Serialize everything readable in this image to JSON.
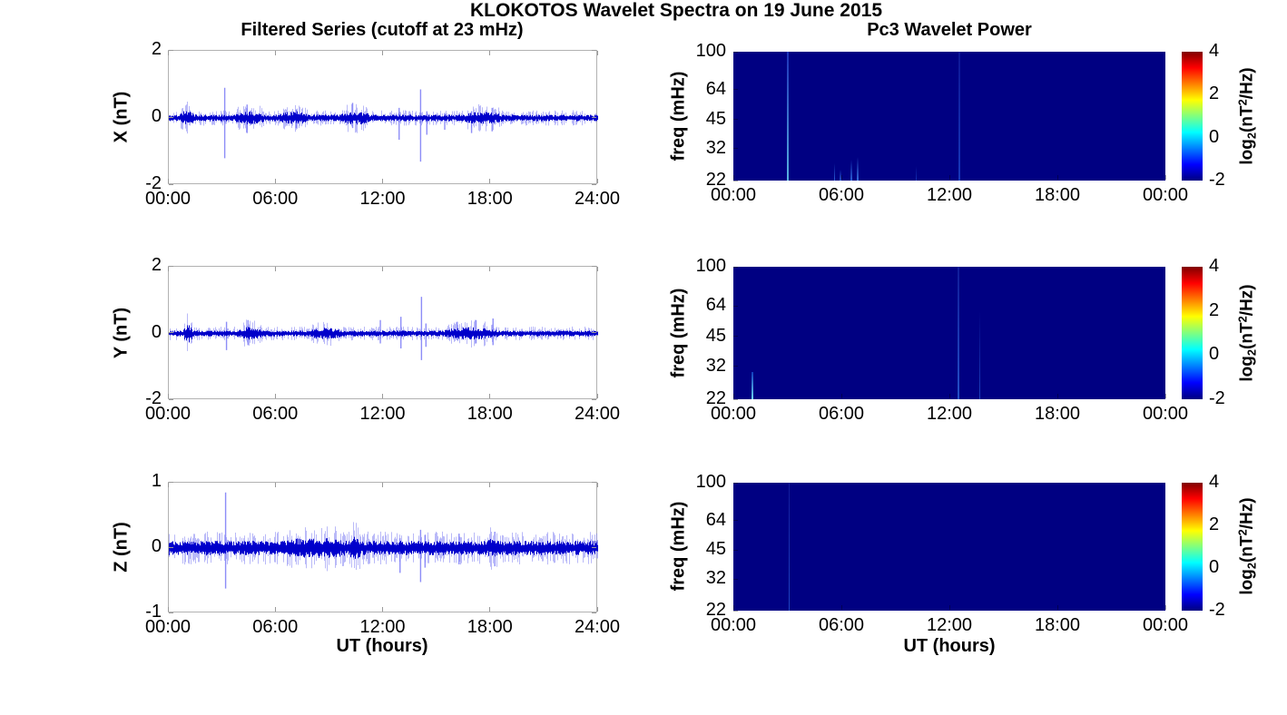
{
  "figure": {
    "title": "KLOKOTOS Wavelet Spectra on 19 June 2015",
    "left_title": "Filtered Series (cutoff at 23 mHz)",
    "right_title": "Pc3 Wavelet Power",
    "xlabel": "UT (hours)",
    "background": "#ffffff",
    "series_color": "#0000cc",
    "spike_color": "rgba(112,112,245,0.8)",
    "outlier_color": "rgba(115,115,242,0.5)"
  },
  "colorbar": {
    "ticks": [
      "4",
      "2",
      "0",
      "-2"
    ],
    "tick_values": [
      4,
      2,
      0,
      -2
    ],
    "range": [
      -2,
      4
    ],
    "label_pre": "log",
    "label_sub": "2",
    "label_mid": "(nT",
    "label_sup": "2",
    "label_post": "/Hz)",
    "colormap": "jet",
    "gradient": [
      "#800000",
      "#ff0000",
      "#ffff00",
      "#00ffff",
      "#0000ff",
      "#000080"
    ]
  },
  "chart_data": [
    {
      "id": "ts-x",
      "type": "line",
      "ylabel": "X (nT)",
      "ylim": [
        -2,
        2
      ],
      "yticks": [
        2,
        0,
        -2
      ],
      "ytick_labels": [
        "2",
        "0",
        "-2"
      ],
      "xlim_hours": [
        0,
        24
      ],
      "xticks_hours": [
        0,
        6,
        12,
        18,
        24
      ],
      "xtick_labels": [
        "00:00",
        "06:00",
        "12:00",
        "18:00",
        "24:00"
      ],
      "seed": 11,
      "noise_base": 0.1,
      "noise_bursts": [
        {
          "t0": 0.6,
          "t1": 1.4,
          "amp": 0.12
        },
        {
          "t0": 3.7,
          "t1": 5.3,
          "amp": 0.1
        },
        {
          "t0": 6.2,
          "t1": 7.8,
          "amp": 0.1
        },
        {
          "t0": 9.6,
          "t1": 11.2,
          "amp": 0.1
        },
        {
          "t0": 16.4,
          "t1": 18.6,
          "amp": 0.08
        }
      ],
      "spikes": [
        {
          "t": 3.1,
          "up": 0.9,
          "down": -1.2
        },
        {
          "t": 4.35,
          "up": 0.4,
          "down": -0.45
        },
        {
          "t": 7.1,
          "up": 0.25,
          "down": -0.3
        },
        {
          "t": 10.25,
          "up": 0.45,
          "down": -0.3
        },
        {
          "t": 12.85,
          "up": 0.3,
          "down": -0.65
        },
        {
          "t": 14.05,
          "up": 0.85,
          "down": -1.3
        },
        {
          "t": 14.4,
          "up": 0.2,
          "down": -0.5
        },
        {
          "t": 15.4,
          "up": 0.15,
          "down": -0.35
        },
        {
          "t": 16.9,
          "up": 0.2,
          "down": -0.45
        },
        {
          "t": 18.05,
          "up": 0.3,
          "down": -0.4
        }
      ]
    },
    {
      "id": "ts-y",
      "type": "line",
      "ylabel": "Y (nT)",
      "ylim": [
        -2,
        2
      ],
      "yticks": [
        2,
        0,
        -2
      ],
      "ytick_labels": [
        "2",
        "0",
        "-2"
      ],
      "xlim_hours": [
        0,
        24
      ],
      "xticks_hours": [
        0,
        6,
        12,
        18,
        24
      ],
      "xtick_labels": [
        "00:00",
        "06:00",
        "12:00",
        "18:00",
        "24:00"
      ],
      "seed": 23,
      "noise_base": 0.09,
      "noise_bursts": [
        {
          "t0": 0.8,
          "t1": 1.3,
          "amp": 0.22
        },
        {
          "t0": 3.8,
          "t1": 5.2,
          "amp": 0.1
        },
        {
          "t0": 7.9,
          "t1": 9.6,
          "amp": 0.08
        },
        {
          "t0": 15.4,
          "t1": 18.4,
          "amp": 0.1
        }
      ],
      "spikes": [
        {
          "t": 3.2,
          "up": 0.35,
          "down": -0.5
        },
        {
          "t": 4.4,
          "up": 0.4,
          "down": -0.35
        },
        {
          "t": 11.8,
          "up": 0.4,
          "down": -0.3
        },
        {
          "t": 12.95,
          "up": 0.5,
          "down": -0.45
        },
        {
          "t": 14.1,
          "up": 1.1,
          "down": -0.8
        },
        {
          "t": 14.35,
          "up": 0.3,
          "down": -0.4
        },
        {
          "t": 16.1,
          "up": 0.35,
          "down": -0.2
        },
        {
          "t": 17.15,
          "up": 0.4,
          "down": -0.3
        },
        {
          "t": 18.1,
          "up": 0.45,
          "down": -0.35
        }
      ]
    },
    {
      "id": "ts-z",
      "type": "line",
      "ylabel": "Z (nT)",
      "ylim": [
        -1,
        1
      ],
      "yticks": [
        1,
        0,
        -1
      ],
      "ytick_labels": [
        "1",
        "0",
        "-1"
      ],
      "xlim_hours": [
        0,
        24
      ],
      "xticks_hours": [
        0,
        6,
        12,
        18,
        24
      ],
      "xtick_labels": [
        "00:00",
        "06:00",
        "12:00",
        "18:00",
        "24:00"
      ],
      "seed": 37,
      "noise_base": 0.11,
      "noise_bursts": [
        {
          "t0": 6.4,
          "t1": 9.9,
          "amp": 0.05
        },
        {
          "t0": 10.1,
          "t1": 10.7,
          "amp": 0.07
        },
        {
          "t0": 17.8,
          "t1": 18.6,
          "amp": 0.05
        }
      ],
      "spikes": [
        {
          "t": 3.15,
          "up": 0.85,
          "down": -0.62
        },
        {
          "t": 12.9,
          "up": 0.15,
          "down": -0.38
        },
        {
          "t": 14.05,
          "up": 0.28,
          "down": -0.52
        },
        {
          "t": 14.3,
          "up": 0.2,
          "down": -0.3
        },
        {
          "t": 16.2,
          "up": 0.22,
          "down": -0.25
        },
        {
          "t": 18.2,
          "up": 0.25,
          "down": -0.28
        }
      ]
    },
    {
      "id": "wv-x",
      "type": "heatmap",
      "ylabel": "freq (mHz)",
      "ylim_mhz": [
        22,
        100
      ],
      "yticks": [
        100,
        64,
        45,
        32,
        22
      ],
      "ytick_labels": [
        "100",
        "64",
        "45",
        "32",
        "22"
      ],
      "xlim_hours": [
        0,
        24
      ],
      "xticks_hours": [
        0,
        6,
        12,
        18,
        24
      ],
      "xtick_labels": [
        "00:00",
        "06:00",
        "12:00",
        "18:00",
        "00:00"
      ],
      "background": "#000082",
      "features": [
        {
          "t": 3.05,
          "f0": 22,
          "f1": 100,
          "w": 2,
          "c_bottom": "#62c8ea",
          "c_top": "#2038c0",
          "opacity": 0.9
        },
        {
          "t": 5.62,
          "f0": 22,
          "f1": 27,
          "w": 1.5,
          "c_bottom": "#2e6ade",
          "c_top": "#000082",
          "opacity": 0.9
        },
        {
          "t": 5.95,
          "f0": 22,
          "f1": 25,
          "w": 1.5,
          "c_bottom": "#2a5ed4",
          "c_top": "#000082",
          "opacity": 0.85
        },
        {
          "t": 6.55,
          "f0": 22,
          "f1": 28,
          "w": 2,
          "c_bottom": "#2e6ade",
          "c_top": "#000082",
          "opacity": 0.9
        },
        {
          "t": 6.9,
          "f0": 22,
          "f1": 29,
          "w": 2,
          "c_bottom": "#3a7ae4",
          "c_top": "#000082",
          "opacity": 0.9
        },
        {
          "t": 10.15,
          "f0": 22,
          "f1": 26,
          "w": 1,
          "c_bottom": "#1c46c8",
          "c_top": "#000082",
          "opacity": 0.7
        },
        {
          "t": 12.55,
          "f0": 22,
          "f1": 100,
          "w": 1.5,
          "c_bottom": "#1c46c8",
          "c_top": "#101c9c",
          "opacity": 0.8
        }
      ]
    },
    {
      "id": "wv-y",
      "type": "heatmap",
      "ylabel": "freq (mHz)",
      "ylim_mhz": [
        22,
        100
      ],
      "yticks": [
        100,
        64,
        45,
        32,
        22
      ],
      "ytick_labels": [
        "100",
        "64",
        "45",
        "32",
        "22"
      ],
      "xlim_hours": [
        0,
        24
      ],
      "xticks_hours": [
        0,
        6,
        12,
        18,
        24
      ],
      "xtick_labels": [
        "00:00",
        "06:00",
        "12:00",
        "18:00",
        "00:00"
      ],
      "background": "#000082",
      "features": [
        {
          "t": 1.05,
          "f0": 22,
          "f1": 30,
          "w": 2.5,
          "c_bottom": "#70e0f4",
          "c_top": "#1040c0",
          "opacity": 0.95
        },
        {
          "t": 12.5,
          "f0": 22,
          "f1": 100,
          "w": 1.5,
          "c_bottom": "#2a5ed4",
          "c_top": "#12209e",
          "opacity": 0.85
        },
        {
          "t": 13.7,
          "f0": 22,
          "f1": 60,
          "w": 1.5,
          "c_bottom": "#2452cc",
          "c_top": "#000082",
          "opacity": 0.8
        }
      ]
    },
    {
      "id": "wv-z",
      "type": "heatmap",
      "ylabel": "freq (mHz)",
      "ylim_mhz": [
        22,
        100
      ],
      "yticks": [
        100,
        64,
        45,
        32,
        22
      ],
      "ytick_labels": [
        "100",
        "64",
        "45",
        "32",
        "22"
      ],
      "xlim_hours": [
        0,
        24
      ],
      "xticks_hours": [
        0,
        6,
        12,
        18,
        24
      ],
      "xtick_labels": [
        "00:00",
        "06:00",
        "12:00",
        "18:00",
        "00:00"
      ],
      "background": "#000082",
      "features": [
        {
          "t": 3.1,
          "f0": 22,
          "f1": 100,
          "w": 1.5,
          "c_bottom": "#2452cc",
          "c_top": "#141e9e",
          "opacity": 0.85
        }
      ]
    }
  ]
}
